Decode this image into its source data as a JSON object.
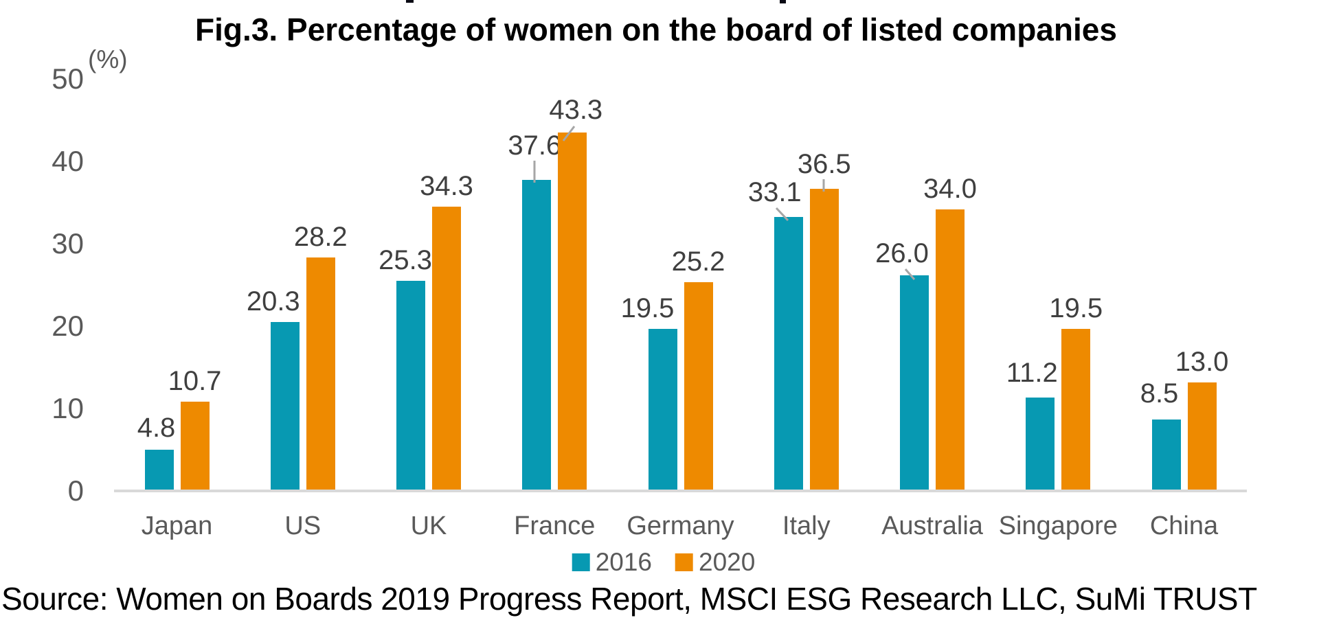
{
  "chart_data": {
    "type": "bar",
    "title": "Fig.3. Percentage of women on the board of listed companies",
    "unit_label": "(%)",
    "categories": [
      "Japan",
      "US",
      "UK",
      "France",
      "Germany",
      "Italy",
      "Australia",
      "Singapore",
      "China"
    ],
    "series": [
      {
        "name": "2016",
        "color": "#0799b2",
        "values": [
          4.8,
          20.3,
          25.3,
          37.6,
          19.5,
          33.1,
          26.0,
          11.2,
          8.5
        ]
      },
      {
        "name": "2020",
        "color": "#ee8a00",
        "values": [
          10.7,
          28.2,
          34.3,
          43.3,
          25.2,
          36.5,
          34.0,
          19.5,
          13.0
        ]
      }
    ],
    "ylim": [
      0,
      50
    ],
    "yticks": [
      0,
      10,
      20,
      30,
      40,
      50
    ],
    "grid": false,
    "legend_position": "bottom",
    "data_labels": true,
    "axis_color": "#d9d9d9",
    "leader_line_color": "#a6a6a6",
    "source": "Source: Women on Boards 2019 Progress Report, MSCI ESG Research LLC, SuMi TRUST"
  }
}
